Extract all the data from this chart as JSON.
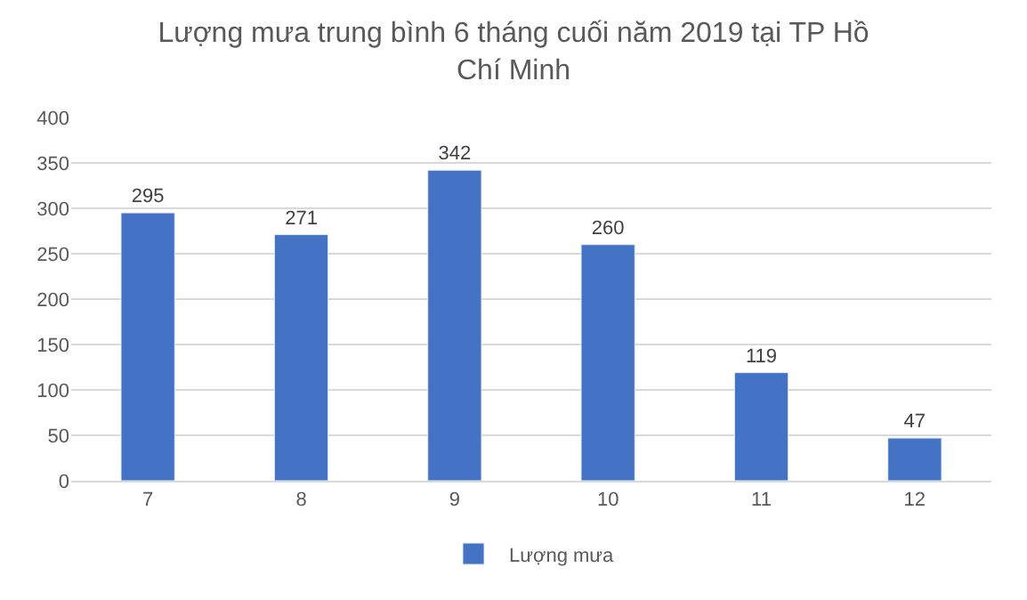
{
  "chart_data": {
    "type": "bar",
    "title": "Lượng mưa trung bình 6 tháng cuối năm 2019 tại TP Hồ Chí Minh",
    "categories": [
      "7",
      "8",
      "9",
      "10",
      "11",
      "12"
    ],
    "series": [
      {
        "name": "Lượng mưa",
        "color": "#4472c4",
        "values": [
          295,
          271,
          342,
          260,
          119,
          47
        ]
      }
    ],
    "ylim": [
      0,
      400
    ],
    "yticks": [
      0,
      50,
      100,
      150,
      200,
      250,
      300,
      350,
      400
    ],
    "grid": "y",
    "legend": "bottom",
    "data_labels": true
  }
}
